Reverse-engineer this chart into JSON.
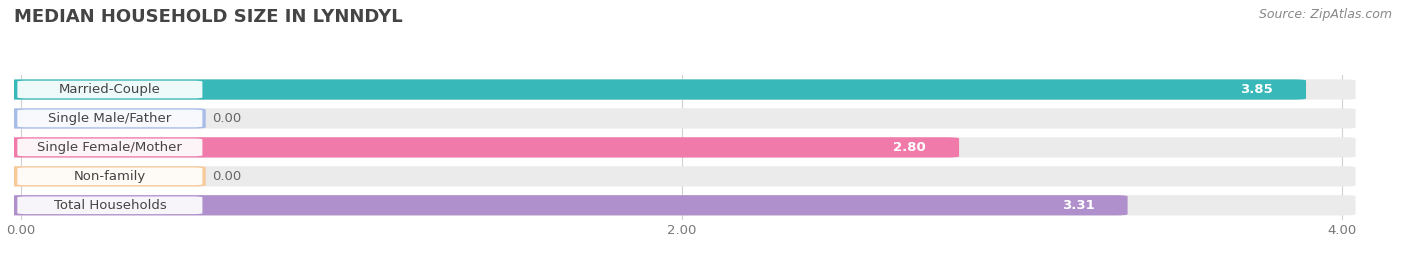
{
  "title": "MEDIAN HOUSEHOLD SIZE IN LYNNDYL",
  "source": "Source: ZipAtlas.com",
  "categories": [
    "Married-Couple",
    "Single Male/Father",
    "Single Female/Mother",
    "Non-family",
    "Total Households"
  ],
  "values": [
    3.85,
    0.0,
    2.8,
    0.0,
    3.31
  ],
  "bar_colors": [
    "#38b8b8",
    "#a8bce8",
    "#f07aaa",
    "#f8ca98",
    "#b090cc"
  ],
  "background_color": "#ffffff",
  "bar_bg_color": "#ebebeb",
  "xlim_max": 4.0,
  "xticks": [
    0.0,
    2.0,
    4.0
  ],
  "xtick_labels": [
    "0.00",
    "2.00",
    "4.00"
  ],
  "label_fontsize": 9.5,
  "value_fontsize": 9.5,
  "title_fontsize": 13,
  "source_fontsize": 9
}
